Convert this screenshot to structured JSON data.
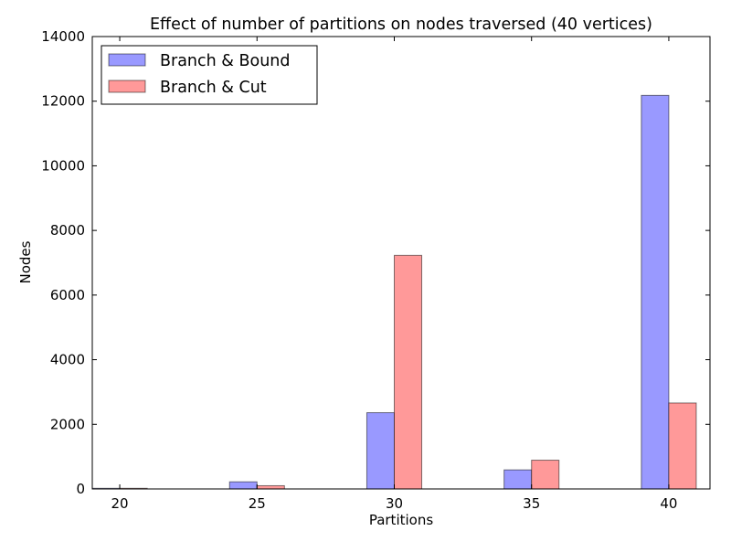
{
  "chart_data": {
    "type": "bar",
    "title": "Effect of number of partitions on nodes traversed (40 vertices)",
    "xlabel": "Partitions",
    "ylabel": "Nodes",
    "categories": [
      20,
      25,
      30,
      35,
      40
    ],
    "xlim": [
      19,
      41.5
    ],
    "ylim": [
      0,
      14000
    ],
    "yticks": [
      0,
      2000,
      4000,
      6000,
      8000,
      10000,
      12000,
      14000
    ],
    "xticks": [
      20,
      25,
      30,
      35,
      40
    ],
    "grid": false,
    "legend_position": "top-left",
    "series": [
      {
        "name": "Branch & Bound",
        "color": "#9999ff",
        "values": [
          20,
          220,
          2360,
          590,
          12180
        ]
      },
      {
        "name": "Branch & Cut",
        "color": "#ff9999",
        "values": [
          20,
          100,
          7230,
          890,
          2660
        ]
      }
    ]
  }
}
